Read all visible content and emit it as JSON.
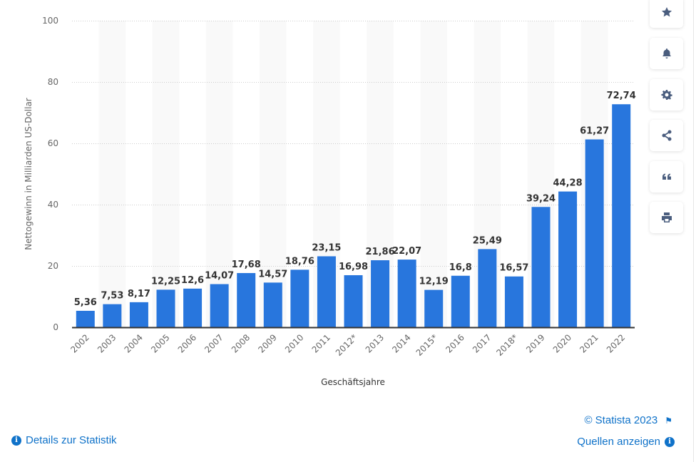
{
  "chart_data": {
    "type": "bar",
    "categories": [
      "2002",
      "2003",
      "2004",
      "2005",
      "2006",
      "2007",
      "2008",
      "2009",
      "2010",
      "2011",
      "2012*",
      "2013",
      "2014",
      "2015*",
      "2016",
      "2017",
      "2018*",
      "2019",
      "2020",
      "2021",
      "2022"
    ],
    "values": [
      5.36,
      7.53,
      8.17,
      12.25,
      12.6,
      14.07,
      17.68,
      14.57,
      18.76,
      23.15,
      16.98,
      21.86,
      22.07,
      12.19,
      16.8,
      25.49,
      16.57,
      39.24,
      44.28,
      61.27,
      72.74
    ],
    "value_labels": [
      "5,36",
      "7,53",
      "8,17",
      "12,25",
      "12,6",
      "14,07",
      "17,68",
      "14,57",
      "18,76",
      "23,15",
      "16,98",
      "21,86",
      "22,07",
      "12,19",
      "16,8",
      "25,49",
      "16,57",
      "39,24",
      "44,28",
      "61,27",
      "72,74"
    ],
    "xlabel": "Geschäftsjahre",
    "ylabel": "Nettogewinn in Milliarden US-Dollar",
    "ylim": [
      0,
      100
    ],
    "yticks": [
      0,
      20,
      40,
      60,
      80,
      100
    ],
    "grid": true,
    "bar_color": "#2876dd"
  },
  "sidebar": {
    "icons": [
      "star-icon",
      "bell-icon",
      "gear-icon",
      "share-icon",
      "quote-icon",
      "print-icon"
    ]
  },
  "footer": {
    "details_label": "Details zur Statistik",
    "copyright": "© Statista 2023",
    "sources_label": "Quellen anzeigen",
    "link_color": "#0f72c9"
  }
}
